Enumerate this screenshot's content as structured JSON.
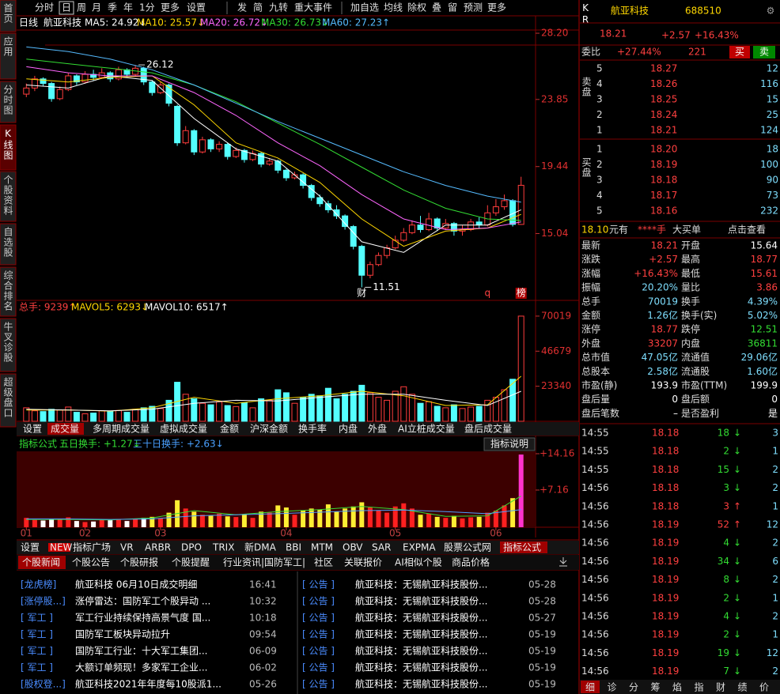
{
  "sidebar": [
    "首页",
    "应用",
    "分时图",
    "K线图",
    "个股资料",
    "自选股",
    "综合排名",
    "牛叉诊股",
    "超级盘口"
  ],
  "toolbar": [
    "分时",
    "日",
    "周",
    "月",
    "季",
    "年",
    "1分",
    "更多",
    "设置",
    "发",
    "简",
    "九转",
    "重大事件",
    "加自选",
    "均线",
    "除权",
    "叠",
    "留",
    "预测",
    "更多"
  ],
  "kline": {
    "period": "日线",
    "name": "航亚科技",
    "ma": [
      {
        "label": "MA5: 24.92↓",
        "color": "#ffffff",
        "values": [
          24.8,
          24.6,
          25.4,
          25.1,
          22.6,
          20.6,
          19.8,
          17.5,
          14.5,
          13.8,
          15.6,
          15.6,
          16.6
        ]
      },
      {
        "label": "MA10: 25.57↓",
        "color": "#ffd700",
        "values": [
          25.2,
          25.0,
          25.3,
          25.4,
          23.5,
          21.0,
          20.0,
          18.4,
          16.0,
          14.2,
          15.2,
          15.4,
          16.3
        ]
      },
      {
        "label": "MA20: 26.72↓",
        "color": "#ff66ff",
        "values": [
          26.0,
          25.6,
          25.4,
          25.4,
          24.3,
          22.8,
          21.0,
          19.5,
          17.6,
          16.0,
          15.3,
          15.4,
          15.8
        ]
      },
      {
        "label": "MA30: 26.73↓",
        "color": "#33dd33",
        "values": [
          26.5,
          26.2,
          25.9,
          25.6,
          24.8,
          23.7,
          22.3,
          20.9,
          19.4,
          17.9,
          16.7,
          16.0,
          15.9
        ]
      },
      {
        "label": "MA60: 27.23↑",
        "color": "#55bbff",
        "values": [
          27.3,
          27.0,
          26.5,
          25.8,
          24.8,
          23.6,
          22.4,
          21.3,
          20.2,
          19.1,
          18.2,
          17.5,
          17.1
        ]
      }
    ],
    "line_x": [
      0,
      5,
      10,
      15,
      20,
      25,
      30,
      35,
      40,
      45,
      50,
      55,
      59
    ],
    "ylim": [
      10.65,
      28.41
    ],
    "yticks": [
      {
        "value": 28.2,
        "label": "28.20"
      },
      23.85,
      19.44,
      15.04
    ],
    "up_color": "#ff3c3c",
    "down_color": "#54ffff",
    "candles": [
      [
        24.2,
        24.9,
        24.0,
        24.6
      ],
      [
        24.6,
        25.4,
        24.4,
        25.2
      ],
      [
        25.2,
        25.3,
        24.7,
        24.9
      ],
      [
        24.9,
        25.0,
        23.7,
        23.9
      ],
      [
        23.9,
        24.7,
        23.8,
        24.5
      ],
      [
        24.5,
        25.6,
        24.4,
        25.4
      ],
      [
        25.4,
        25.5,
        24.8,
        25.0
      ],
      [
        25.0,
        25.7,
        24.9,
        25.5
      ],
      [
        25.5,
        25.8,
        25.1,
        25.3
      ],
      [
        25.3,
        25.9,
        25.2,
        25.6
      ],
      [
        25.6,
        25.7,
        25.0,
        25.2
      ],
      [
        25.2,
        26.0,
        25.1,
        25.8
      ],
      [
        25.8,
        25.9,
        25.3,
        25.5
      ],
      [
        25.5,
        26.12,
        25.4,
        25.9
      ],
      [
        25.9,
        26.0,
        24.8,
        25.0
      ],
      [
        25.0,
        25.1,
        24.1,
        24.3
      ],
      [
        24.3,
        25.0,
        24.2,
        24.8
      ],
      [
        24.8,
        24.9,
        23.4,
        23.6
      ],
      [
        23.4,
        23.5,
        20.8,
        21.0
      ],
      [
        21.0,
        22.1,
        20.9,
        21.8
      ],
      [
        21.8,
        21.9,
        20.2,
        20.4
      ],
      [
        20.4,
        21.4,
        20.3,
        21.2
      ],
      [
        21.2,
        21.3,
        20.4,
        20.6
      ],
      [
        20.6,
        21.1,
        20.4,
        20.9
      ],
      [
        20.9,
        21.0,
        19.9,
        20.1
      ],
      [
        20.1,
        20.7,
        20.0,
        20.5
      ],
      [
        20.5,
        20.6,
        19.7,
        19.9
      ],
      [
        19.9,
        20.5,
        19.8,
        20.3
      ],
      [
        20.3,
        20.4,
        19.4,
        19.6
      ],
      [
        19.6,
        20.0,
        19.5,
        19.8
      ],
      [
        19.8,
        19.9,
        19.0,
        19.2
      ],
      [
        19.2,
        19.3,
        18.5,
        18.7
      ],
      [
        18.7,
        19.1,
        18.6,
        18.9
      ],
      [
        18.9,
        19.0,
        18.0,
        18.2
      ],
      [
        18.2,
        18.3,
        17.2,
        17.4
      ],
      [
        17.4,
        17.6,
        16.8,
        17.0
      ],
      [
        17.0,
        17.2,
        16.4,
        16.6
      ],
      [
        16.6,
        16.9,
        16.0,
        16.2
      ],
      [
        16.2,
        16.3,
        15.3,
        15.5
      ],
      [
        15.5,
        15.6,
        14.0,
        14.2
      ],
      [
        14.2,
        14.3,
        11.51,
        12.3
      ],
      [
        12.3,
        13.2,
        12.1,
        13.0
      ],
      [
        13.0,
        13.8,
        12.9,
        13.6
      ],
      [
        13.6,
        14.3,
        13.4,
        14.1
      ],
      [
        14.1,
        14.9,
        14.0,
        14.6
      ],
      [
        14.6,
        15.4,
        14.5,
        15.1
      ],
      [
        15.1,
        15.9,
        15.0,
        15.6
      ],
      [
        15.6,
        16.2,
        15.1,
        15.3
      ],
      [
        15.3,
        16.4,
        15.2,
        16.0
      ],
      [
        16.0,
        16.1,
        15.2,
        15.4
      ],
      [
        15.4,
        16.0,
        15.3,
        15.7
      ],
      [
        15.7,
        15.8,
        14.9,
        15.2
      ],
      [
        15.2,
        15.6,
        14.9,
        15.3
      ],
      [
        15.3,
        16.0,
        15.2,
        15.8
      ],
      [
        15.8,
        16.1,
        15.4,
        15.6
      ],
      [
        15.6,
        16.9,
        15.5,
        16.4
      ],
      [
        16.4,
        17.3,
        16.2,
        16.8
      ],
      [
        16.8,
        17.6,
        16.6,
        17.2
      ],
      [
        17.2,
        17.3,
        15.5,
        15.64
      ],
      [
        15.64,
        18.77,
        15.61,
        18.21
      ]
    ],
    "annotations": [
      {
        "at": 13,
        "value": 26.12
      },
      {
        "at": 40,
        "value": 11.51
      }
    ],
    "events": [
      {
        "at": 40,
        "label": "财"
      },
      {
        "at": 55,
        "label": "q"
      },
      {
        "at": 59,
        "label": "榜"
      }
    ]
  },
  "volume": {
    "legend": [
      {
        "label": "总手: 9239↑",
        "color": "#ff4040"
      },
      {
        "label": "MAVOL5: 6293↓",
        "color": "#ffd700"
      },
      {
        "label": "MAVOL10: 6517↑",
        "color": "#ffffff"
      }
    ],
    "ylim": [
      0,
      79450
    ],
    "yticks": [
      70019,
      46679,
      23340
    ],
    "values": [
      9000,
      7000,
      6500,
      8000,
      7500,
      9500,
      6000,
      5000,
      5500,
      7000,
      6800,
      7200,
      6000,
      8000,
      9000,
      10000,
      8500,
      14000,
      26000,
      18000,
      15000,
      12000,
      11000,
      13000,
      10500,
      9800,
      12500,
      9000,
      15000,
      14000,
      21000,
      19000,
      12000,
      16000,
      18000,
      17000,
      22000,
      15000,
      18000,
      20000,
      24000,
      19000,
      16000,
      14000,
      20000,
      23000,
      18000,
      12000,
      13000,
      10000,
      9000,
      11000,
      8500,
      9500,
      10000,
      14000,
      16000,
      21000,
      28000,
      70019
    ],
    "lines": [
      {
        "color": "#ffd700",
        "values": [
          7500,
          7600,
          6800,
          9000,
          16000,
          12000,
          15000,
          17000,
          20000,
          17000,
          10500,
          11000,
          30000
        ]
      },
      {
        "color": "#ffffff",
        "values": [
          8000,
          7500,
          7000,
          8000,
          12000,
          14000,
          13500,
          16000,
          18000,
          18000,
          14000,
          10500,
          20000
        ]
      }
    ]
  },
  "volume_tabs": [
    "设置",
    "成交量",
    "多周期成交量",
    "虚拟成交量",
    "金额",
    "沪深金额",
    "换手率",
    "内盘",
    "外盘",
    "AI立桩成交量",
    "盘后成交量"
  ],
  "indicator": {
    "legend": [
      {
        "label": "指标公式",
        "color": "#33dd33"
      },
      {
        "label": "五日换手: +1.27↓",
        "color": "#33dd33"
      },
      {
        "label": "三十日换手: +2.63↓",
        "color": "#4aa0ff"
      }
    ],
    "help": "指标说明",
    "ylim": [
      0,
      16.9
    ],
    "yticks": [
      {
        "value": 14.16,
        "label": "+14.16"
      },
      {
        "value": 7.16,
        "label": "+7.16"
      }
    ],
    "values": [
      1.8,
      1.4,
      1.3,
      1.6,
      1.5,
      1.9,
      1.2,
      1.0,
      1.1,
      1.4,
      1.36,
      1.44,
      1.2,
      1.6,
      1.8,
      2.0,
      1.7,
      2.8,
      5.2,
      3.6,
      3.0,
      2.4,
      2.2,
      2.6,
      2.1,
      1.96,
      2.5,
      1.8,
      3.0,
      2.8,
      4.2,
      3.8,
      2.4,
      3.2,
      3.6,
      3.4,
      4.4,
      3.0,
      3.6,
      4.0,
      4.8,
      3.8,
      3.2,
      2.8,
      4.0,
      4.6,
      3.6,
      2.4,
      2.6,
      2.0,
      1.8,
      2.2,
      1.7,
      1.9,
      2.0,
      2.8,
      3.2,
      4.2,
      5.6,
      14.0
    ],
    "lines": [
      {
        "color": "#33dd33",
        "values": [
          1.5,
          1.5,
          1.4,
          1.8,
          3.2,
          2.4,
          3.0,
          3.4,
          4.0,
          3.4,
          2.1,
          2.2,
          6.0
        ]
      },
      {
        "color": "#4aa0ff",
        "values": [
          1.6,
          1.6,
          1.5,
          1.6,
          2.2,
          2.4,
          2.6,
          2.9,
          3.2,
          3.3,
          3.0,
          2.6,
          3.4
        ]
      }
    ]
  },
  "x_axis": [
    {
      "at": 0,
      "label": "01"
    },
    {
      "at": 7,
      "label": "02"
    },
    {
      "at": 16,
      "label": "03"
    },
    {
      "at": 31,
      "label": "04"
    },
    {
      "at": 44,
      "label": "05"
    },
    {
      "at": 56,
      "label": "06"
    }
  ],
  "indicator_tabs": [
    "设置",
    "NEW",
    "指标广场",
    "VR",
    "ARBR",
    "DPO",
    "TRIX",
    "新DMA",
    "BBI",
    "MTM",
    "OBV",
    "SAR",
    "EXPMA",
    "股票公式网",
    "指标公式"
  ],
  "news_tabs": [
    "个股新闻",
    "个股公告",
    "个股研报",
    "个股提醒",
    "行业资讯|国防军工|",
    "社区",
    "关联报价",
    "AI相似个股",
    "商品价格"
  ],
  "news_left": [
    {
      "tag": "[龙虎榜]",
      "title": "航亚科技 06月10日成交明细",
      "time": "16:41"
    },
    {
      "tag": "[涨停股...]",
      "title": "涨停雷达：国防军工个股异动 ...",
      "time": "10:32"
    },
    {
      "tag": "[ 军工 ]",
      "title": "军工行业持续保持高景气度 国...",
      "time": "10:18"
    },
    {
      "tag": "[ 军工 ]",
      "title": "国防军工板块异动拉升",
      "time": "09:54"
    },
    {
      "tag": "[ 军工 ]",
      "title": "国防军工行业：十大军工集团...",
      "time": "06-09"
    },
    {
      "tag": "[ 军工 ]",
      "title": "大额订单频现！多家军工企业...",
      "time": "06-02"
    },
    {
      "tag": "[股权登...]",
      "title": "航亚科技2021年年度每10股派1...",
      "time": "05-26"
    }
  ],
  "news_right": [
    {
      "tag": "[ 公告 ]",
      "title": "航亚科技：无锡航亚科技股份...",
      "time": "05-28"
    },
    {
      "tag": "[ 公告 ]",
      "title": "航亚科技：无锡航亚科技股份...",
      "time": "05-28"
    },
    {
      "tag": "[ 公告 ]",
      "title": "航亚科技：无锡航亚科技股份...",
      "time": "05-27"
    },
    {
      "tag": "[ 公告 ]",
      "title": "航亚科技：无锡航亚科技股份...",
      "time": "05-19"
    },
    {
      "tag": "[ 公告 ]",
      "title": "航亚科技：无锡航亚科技股份...",
      "time": "05-19"
    },
    {
      "tag": "[ 公告 ]",
      "title": "航亚科技：无锡航亚科技股份...",
      "time": "05-19"
    },
    {
      "tag": "[ 公告 ]",
      "title": "航亚科技：无锡航亚科技股份...",
      "time": "05-19"
    }
  ],
  "quote": {
    "badge": "KR",
    "name": "航亚科技",
    "code": "688510",
    "price": "18.21",
    "change": "+2.57",
    "pct": "+16.43%",
    "weibi_label": "委比",
    "weibi": "+27.44%",
    "weicha": "221",
    "buy": "买",
    "sell": "卖",
    "ask_side": "卖盘",
    "bid_side": "买盘",
    "asks": [
      {
        "level": "5",
        "price": "18.27",
        "volume": "12"
      },
      {
        "level": "4",
        "price": "18.26",
        "volume": "116"
      },
      {
        "level": "3",
        "price": "18.25",
        "volume": "15"
      },
      {
        "level": "2",
        "price": "18.24",
        "volume": "25"
      },
      {
        "level": "1",
        "price": "18.21",
        "volume": "124"
      }
    ],
    "bids": [
      {
        "level": "1",
        "price": "18.20",
        "volume": "18"
      },
      {
        "level": "2",
        "price": "18.19",
        "volume": "100"
      },
      {
        "level": "3",
        "price": "18.18",
        "volume": "90"
      },
      {
        "level": "4",
        "price": "18.17",
        "volume": "73"
      },
      {
        "level": "5",
        "price": "18.16",
        "volume": "232"
      }
    ],
    "big_order": {
      "price": "18.10",
      "unit": "元有",
      "hands": "****手",
      "kind": "大买单",
      "link": "点击查看"
    },
    "stats": [
      {
        "label": "最新",
        "value": "18.21",
        "color": "#ff4040"
      },
      {
        "label": "开盘",
        "value": "15.64",
        "color": "#ffffff"
      },
      {
        "label": "涨跌",
        "value": "+2.57",
        "color": "#ff4040"
      },
      {
        "label": "最高",
        "value": "18.77",
        "color": "#ff4040"
      },
      {
        "label": "涨幅",
        "value": "+16.43%",
        "color": "#ff4040"
      },
      {
        "label": "最低",
        "value": "15.61",
        "color": "#ff4040"
      },
      {
        "label": "振幅",
        "value": "20.20%",
        "color": "#7fdfff"
      },
      {
        "label": "量比",
        "value": "3.86",
        "color": "#ff4040"
      },
      {
        "label": "总手",
        "value": "70019",
        "color": "#7fdfff"
      },
      {
        "label": "换手",
        "value": "4.39%",
        "color": "#7fdfff"
      },
      {
        "label": "金额",
        "value": "1.26亿",
        "color": "#7fdfff"
      },
      {
        "label": "换手(实)",
        "value": "5.02%",
        "color": "#7fdfff"
      },
      {
        "label": "涨停",
        "value": "18.77",
        "color": "#ff4040"
      },
      {
        "label": "跌停",
        "value": "12.51",
        "color": "#33dd33"
      },
      {
        "label": "外盘",
        "value": "33207",
        "color": "#ff4040"
      },
      {
        "label": "内盘",
        "value": "36811",
        "color": "#33dd33"
      },
      {
        "label": "总市值",
        "value": "47.05亿",
        "color": "#7fdfff"
      },
      {
        "label": "流通值",
        "value": "29.06亿",
        "color": "#7fdfff"
      },
      {
        "label": "总股本",
        "value": "2.58亿",
        "color": "#7fdfff"
      },
      {
        "label": "流通股",
        "value": "1.60亿",
        "color": "#7fdfff"
      },
      {
        "label": "市盈(静)",
        "value": "193.9",
        "color": "#ffffff"
      },
      {
        "label": "市盈(TTM)",
        "value": "199.9",
        "color": "#ffffff"
      },
      {
        "label": "盘后量",
        "value": "0",
        "color": "#ffffff"
      },
      {
        "label": "盘后额",
        "value": "0",
        "color": "#ffffff"
      },
      {
        "label": "盘后笔数",
        "value": "–",
        "color": "#ffffff"
      },
      {
        "label": "是否盈利",
        "value": "是",
        "color": "#ffffff"
      }
    ],
    "trades": [
      {
        "time": "14:55",
        "price": "18.18",
        "volume": "18",
        "arrow": "↓",
        "count": "3"
      },
      {
        "time": "14:55",
        "price": "18.18",
        "volume": "2",
        "arrow": "↓",
        "count": "1"
      },
      {
        "time": "14:55",
        "price": "18.18",
        "volume": "15",
        "arrow": "↓",
        "count": "2"
      },
      {
        "time": "14:56",
        "price": "18.18",
        "volume": "3",
        "arrow": "↓",
        "count": "2"
      },
      {
        "time": "14:56",
        "price": "18.18",
        "volume": "3",
        "arrow": "↑",
        "count": "1"
      },
      {
        "time": "14:56",
        "price": "18.19",
        "volume": "52",
        "arrow": "↑",
        "count": "12"
      },
      {
        "time": "14:56",
        "price": "18.19",
        "volume": "4",
        "arrow": "↓",
        "count": "2"
      },
      {
        "time": "14:56",
        "price": "18.19",
        "volume": "34",
        "arrow": "↓",
        "count": "6"
      },
      {
        "time": "14:56",
        "price": "18.19",
        "volume": "8",
        "arrow": "↓",
        "count": "2"
      },
      {
        "time": "14:56",
        "price": "18.19",
        "volume": "2",
        "arrow": "↓",
        "count": "1"
      },
      {
        "time": "14:56",
        "price": "18.19",
        "volume": "4",
        "arrow": "↓",
        "count": "2"
      },
      {
        "time": "14:56",
        "price": "18.19",
        "volume": "2",
        "arrow": "↓",
        "count": "1"
      },
      {
        "time": "14:56",
        "price": "18.19",
        "volume": "19",
        "arrow": "↓",
        "count": "12"
      },
      {
        "time": "14:56",
        "price": "18.19",
        "volume": "7",
        "arrow": "↓",
        "count": "2"
      }
    ],
    "bottom_tabs": [
      "细",
      "诊",
      "分",
      "筹",
      "焰",
      "指",
      "财",
      "绩",
      "价"
    ]
  }
}
